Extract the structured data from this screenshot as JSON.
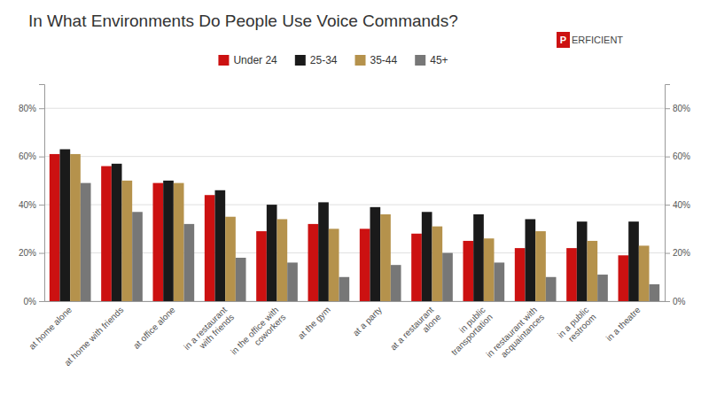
{
  "chart_data": {
    "type": "bar",
    "title": "In What Environments Do People Use Voice Commands?",
    "categories": [
      "at home alone",
      "at home with friends",
      "at office alone",
      "in a restaurant\nwith friends",
      "in the office with\ncoworkers",
      "at the gym",
      "at a party",
      "at a restaurant\nalone",
      "in public\ntransportation",
      "in restaurant with\nacquaintances",
      "in a public\nrestroom",
      "in a theatre"
    ],
    "series": [
      {
        "name": "Under 24",
        "color": "#cc1111",
        "values": [
          61,
          56,
          49,
          44,
          29,
          32,
          30,
          28,
          25,
          22,
          22,
          19
        ]
      },
      {
        "name": "25-34",
        "color": "#1a1a1a",
        "values": [
          63,
          57,
          50,
          46,
          40,
          41,
          39,
          37,
          36,
          34,
          33,
          33
        ]
      },
      {
        "name": "35-44",
        "color": "#b5924c",
        "values": [
          61,
          50,
          49,
          35,
          34,
          30,
          36,
          31,
          26,
          29,
          25,
          23
        ]
      },
      {
        "name": "45+",
        "color": "#777777",
        "values": [
          49,
          37,
          32,
          18,
          16,
          10,
          15,
          20,
          16,
          10,
          11,
          7
        ]
      }
    ],
    "ylim": [
      0,
      90
    ],
    "yticks": [
      {
        "value": 0,
        "label": "0%"
      },
      {
        "value": 20,
        "label": "20%"
      },
      {
        "value": 40,
        "label": "40%"
      },
      {
        "value": 60,
        "label": "60%"
      },
      {
        "value": 80,
        "label": "80%"
      }
    ],
    "y2lim": [
      0,
      90
    ],
    "y2ticks": [
      {
        "value": 0,
        "label": "0%"
      },
      {
        "value": 20,
        "label": "20%"
      },
      {
        "value": 40,
        "label": "40%"
      },
      {
        "value": 60,
        "label": "60%"
      },
      {
        "value": 80,
        "label": "80%"
      }
    ],
    "grid": true,
    "legend": "top",
    "annotations": [
      {
        "text": "P"
      },
      {
        "text": "ERFICIENT"
      }
    ]
  }
}
